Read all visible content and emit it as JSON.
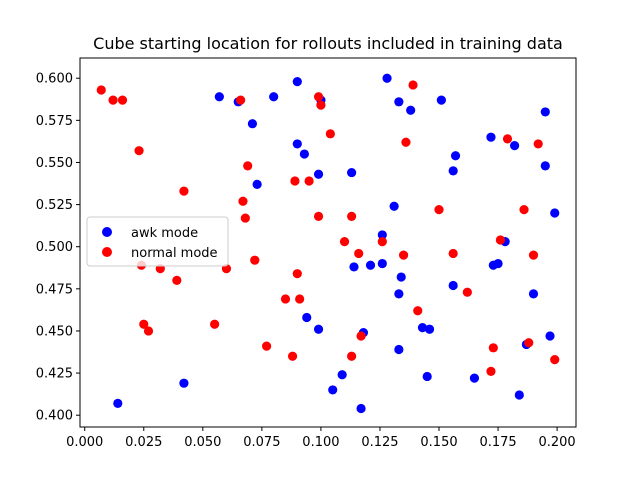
{
  "chart_data": {
    "type": "scatter",
    "title": "Cube starting location for rollouts included in training data",
    "xlabel": "",
    "ylabel": "",
    "xlim": [
      -0.002,
      0.208
    ],
    "ylim": [
      0.393,
      0.612
    ],
    "x_ticks": [
      "0.000",
      "0.025",
      "0.050",
      "0.075",
      "0.100",
      "0.125",
      "0.150",
      "0.175",
      "0.200"
    ],
    "y_ticks": [
      "0.400",
      "0.425",
      "0.450",
      "0.475",
      "0.500",
      "0.525",
      "0.550",
      "0.575",
      "0.600"
    ],
    "grid": false,
    "legend_position": "center-left",
    "series": [
      {
        "name": "awk mode",
        "color": "#0000ff",
        "points": [
          [
            0.09,
            0.598
          ],
          [
            0.128,
            0.6
          ],
          [
            0.057,
            0.589
          ],
          [
            0.065,
            0.586
          ],
          [
            0.08,
            0.589
          ],
          [
            0.1,
            0.587
          ],
          [
            0.133,
            0.586
          ],
          [
            0.151,
            0.587
          ],
          [
            0.138,
            0.581
          ],
          [
            0.195,
            0.58
          ],
          [
            0.071,
            0.573
          ],
          [
            0.172,
            0.565
          ],
          [
            0.182,
            0.56
          ],
          [
            0.09,
            0.561
          ],
          [
            0.093,
            0.555
          ],
          [
            0.157,
            0.554
          ],
          [
            0.195,
            0.548
          ],
          [
            0.099,
            0.543
          ],
          [
            0.113,
            0.544
          ],
          [
            0.156,
            0.545
          ],
          [
            0.073,
            0.537
          ],
          [
            0.131,
            0.524
          ],
          [
            0.199,
            0.52
          ],
          [
            0.126,
            0.507
          ],
          [
            0.178,
            0.503
          ],
          [
            0.114,
            0.488
          ],
          [
            0.121,
            0.489
          ],
          [
            0.126,
            0.49
          ],
          [
            0.134,
            0.482
          ],
          [
            0.173,
            0.489
          ],
          [
            0.175,
            0.49
          ],
          [
            0.156,
            0.477
          ],
          [
            0.133,
            0.472
          ],
          [
            0.19,
            0.472
          ],
          [
            0.094,
            0.458
          ],
          [
            0.099,
            0.451
          ],
          [
            0.118,
            0.449
          ],
          [
            0.143,
            0.452
          ],
          [
            0.146,
            0.451
          ],
          [
            0.197,
            0.447
          ],
          [
            0.133,
            0.439
          ],
          [
            0.187,
            0.442
          ],
          [
            0.109,
            0.424
          ],
          [
            0.145,
            0.423
          ],
          [
            0.165,
            0.422
          ],
          [
            0.042,
            0.419
          ],
          [
            0.105,
            0.415
          ],
          [
            0.184,
            0.412
          ],
          [
            0.014,
            0.407
          ],
          [
            0.117,
            0.404
          ]
        ]
      },
      {
        "name": "normal mode",
        "color": "#ff0000",
        "points": [
          [
            0.007,
            0.593
          ],
          [
            0.012,
            0.587
          ],
          [
            0.016,
            0.587
          ],
          [
            0.066,
            0.587
          ],
          [
            0.099,
            0.589
          ],
          [
            0.1,
            0.584
          ],
          [
            0.139,
            0.596
          ],
          [
            0.104,
            0.567
          ],
          [
            0.136,
            0.562
          ],
          [
            0.023,
            0.557
          ],
          [
            0.179,
            0.564
          ],
          [
            0.192,
            0.561
          ],
          [
            0.069,
            0.548
          ],
          [
            0.089,
            0.539
          ],
          [
            0.095,
            0.539
          ],
          [
            0.042,
            0.533
          ],
          [
            0.067,
            0.527
          ],
          [
            0.068,
            0.517
          ],
          [
            0.099,
            0.518
          ],
          [
            0.113,
            0.518
          ],
          [
            0.15,
            0.522
          ],
          [
            0.186,
            0.522
          ],
          [
            0.11,
            0.503
          ],
          [
            0.126,
            0.503
          ],
          [
            0.176,
            0.504
          ],
          [
            0.116,
            0.496
          ],
          [
            0.135,
            0.495
          ],
          [
            0.156,
            0.496
          ],
          [
            0.19,
            0.495
          ],
          [
            0.024,
            0.489
          ],
          [
            0.032,
            0.487
          ],
          [
            0.06,
            0.487
          ],
          [
            0.072,
            0.492
          ],
          [
            0.09,
            0.484
          ],
          [
            0.039,
            0.48
          ],
          [
            0.162,
            0.473
          ],
          [
            0.085,
            0.469
          ],
          [
            0.091,
            0.469
          ],
          [
            0.141,
            0.462
          ],
          [
            0.025,
            0.454
          ],
          [
            0.055,
            0.454
          ],
          [
            0.027,
            0.45
          ],
          [
            0.117,
            0.447
          ],
          [
            0.077,
            0.441
          ],
          [
            0.173,
            0.44
          ],
          [
            0.188,
            0.443
          ],
          [
            0.088,
            0.435
          ],
          [
            0.113,
            0.435
          ],
          [
            0.199,
            0.433
          ],
          [
            0.172,
            0.426
          ]
        ]
      }
    ]
  }
}
